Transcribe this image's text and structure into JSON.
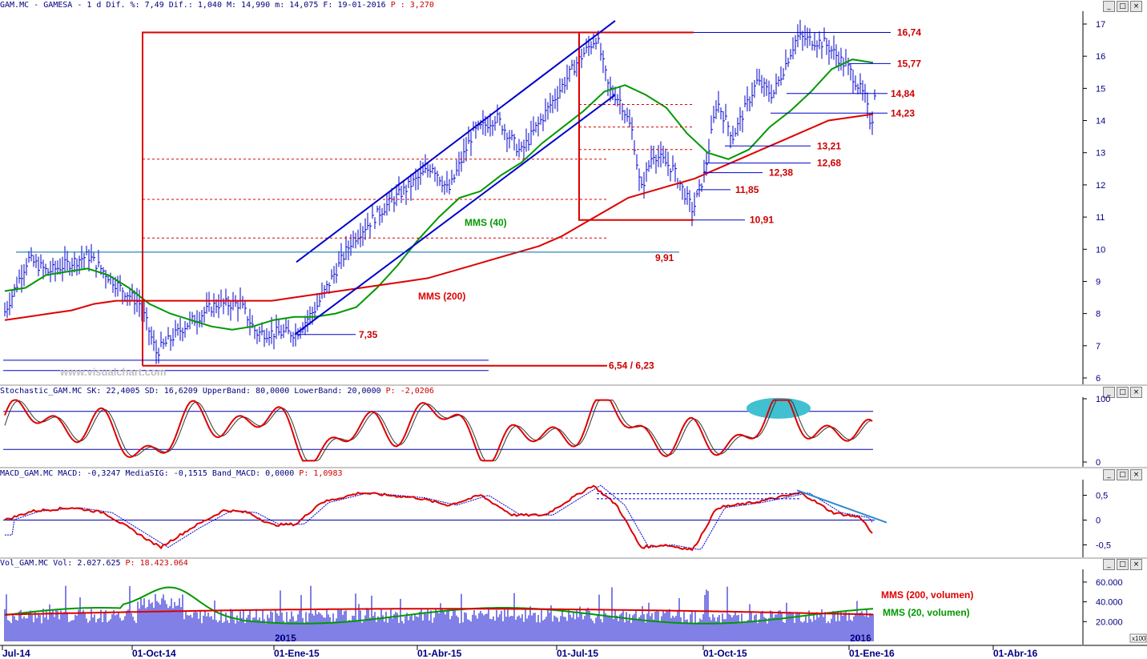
{
  "window": {
    "symbol": "GAM.MC",
    "name": "GAMESA",
    "period": "1 d",
    "stats_text": "Dif. %: 7,49 Dif.: 1,040 M: 14,990 m: 14,075 F: 19-01-2016",
    "p_label": "P : 3,270"
  },
  "panels": {
    "stochastic": {
      "title": "Stochastic_GAM.MC SK: 22,4005 SD: 16,6209 UpperBand: 80,0000 LowerBand: 20,0000",
      "p_label": "P: -2,0206"
    },
    "macd": {
      "title": "MACD_GAM.MC MACD: -0,3247 MediaSIG: -0,1515 Band_MACD: 0,0000",
      "p_label": "P: 1,0983"
    },
    "volume": {
      "title": "Vol_GAM.MC Vol: 2.027.625",
      "p_label": "P: 18.423.064"
    }
  },
  "watermark": "www.visualchart.com",
  "chart_data": [
    {
      "type": "line",
      "panel": "price",
      "y_ticks": [
        "17",
        "16",
        "15",
        "14",
        "13",
        "12",
        "11",
        "10",
        "9",
        "8",
        "7",
        "6"
      ],
      "ylim": [
        5.8,
        17.2
      ],
      "x_ticks": [
        "Jul-14",
        "01-Oct-14",
        "01-Ene-15",
        "01-Abr-15",
        "01-Jul-15",
        "01-Oct-15",
        "01-Ene-16",
        "01-Abr-16"
      ],
      "levels": [
        {
          "value": 16.74,
          "label": "16,74"
        },
        {
          "value": 15.77,
          "label": "15,77"
        },
        {
          "value": 14.84,
          "label": "14,84"
        },
        {
          "value": 14.23,
          "label": "14,23"
        },
        {
          "value": 13.21,
          "label": "13,21"
        },
        {
          "value": 12.68,
          "label": "12,68"
        },
        {
          "value": 12.38,
          "label": "12,38"
        },
        {
          "value": 11.85,
          "label": "11,85"
        },
        {
          "value": 10.91,
          "label": "10,91"
        },
        {
          "value": 9.91,
          "label": "9,91"
        },
        {
          "value": 7.35,
          "label": "7,35"
        },
        {
          "value": 6.38,
          "label": "6,54 / 6,23"
        }
      ],
      "series": [
        {
          "name": "MMS (40)",
          "color": "#009900",
          "values": [
            8.7,
            8.8,
            9.2,
            9.3,
            9.4,
            9.2,
            8.8,
            8.3,
            8.0,
            7.8,
            7.6,
            7.5,
            7.6,
            7.8,
            7.9,
            7.9,
            8.0,
            8.2,
            8.8,
            9.5,
            10.3,
            11.0,
            11.6,
            11.8,
            12.3,
            12.7,
            13.3,
            13.8,
            14.3,
            14.9,
            15.1,
            14.8,
            14.4,
            13.6,
            13.0,
            12.8,
            13.1,
            13.8,
            14.3,
            14.9,
            15.6,
            15.9,
            15.8
          ]
        },
        {
          "name": "MMS (200)",
          "color": "#dd0000",
          "values": [
            7.8,
            7.9,
            8.0,
            8.1,
            8.3,
            8.4,
            8.4,
            8.4,
            8.4,
            8.4,
            8.4,
            8.4,
            8.4,
            8.5,
            8.6,
            8.7,
            8.8,
            8.9,
            9.0,
            9.1,
            9.3,
            9.5,
            9.7,
            9.9,
            10.1,
            10.4,
            10.8,
            11.2,
            11.6,
            11.8,
            12.0,
            12.2,
            12.5,
            12.8,
            13.1,
            13.4,
            13.7,
            14.0,
            14.1,
            14.2
          ]
        }
      ],
      "annotations": [
        "MMS (40)",
        "MMS (200)"
      ]
    },
    {
      "type": "line",
      "panel": "stochastic",
      "y_ticks": [
        "100",
        "0"
      ],
      "upper_band": 80,
      "lower_band": 20
    },
    {
      "type": "line",
      "panel": "macd",
      "y_ticks": [
        "0,5",
        "0",
        "-0,5"
      ]
    },
    {
      "type": "bar",
      "panel": "volume",
      "y_ticks": [
        "60.000",
        "40.000",
        "20.000"
      ],
      "unit_label": "x100",
      "year_labels": [
        "2015",
        "2016"
      ],
      "legend": [
        {
          "name": "MMS (200, volumen)",
          "color": "#dd0000"
        },
        {
          "name": "MMS (20, volumen)",
          "color": "#009900"
        }
      ]
    }
  ]
}
